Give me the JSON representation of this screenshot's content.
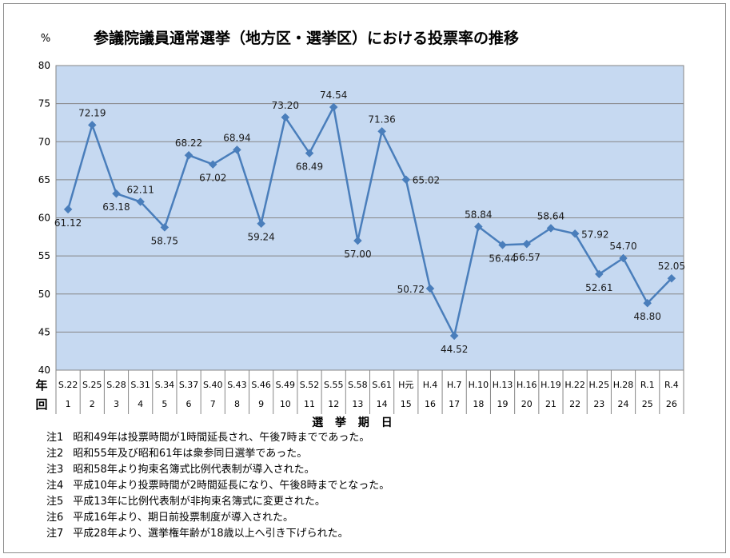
{
  "chart_data": {
    "type": "line",
    "title": "参議院議員通常選挙（地方区・選挙区）における投票率の推移",
    "ylabel": "%",
    "xlabel": "選 挙 期 日",
    "ylim": [
      40,
      80
    ],
    "yticks": [
      40,
      45,
      50,
      55,
      60,
      65,
      70,
      75,
      80
    ],
    "grid": true,
    "row_labels": {
      "year": "年",
      "count": "回"
    },
    "categories": [
      "S.22",
      "S.25",
      "S.28",
      "S.31",
      "S.34",
      "S.37",
      "S.40",
      "S.43",
      "S.46",
      "S.49",
      "S.52",
      "S.55",
      "S.58",
      "S.61",
      "H元",
      "H.4",
      "H.7",
      "H.10",
      "H.13",
      "H.16",
      "H.19",
      "H.22",
      "H.25",
      "H.28",
      "R.1",
      "R.4"
    ],
    "election_numbers": [
      1,
      2,
      3,
      4,
      5,
      6,
      7,
      8,
      9,
      10,
      11,
      12,
      13,
      14,
      15,
      16,
      17,
      18,
      19,
      20,
      21,
      22,
      23,
      24,
      25,
      26
    ],
    "series": [
      {
        "values": [
          61.12,
          72.19,
          63.18,
          62.11,
          58.75,
          68.22,
          67.02,
          68.94,
          59.24,
          73.2,
          68.49,
          74.54,
          57.0,
          71.36,
          65.02,
          50.72,
          44.52,
          58.84,
          56.44,
          56.57,
          58.64,
          57.92,
          52.61,
          54.7,
          48.8,
          52.05
        ]
      }
    ],
    "colors": {
      "line": "#4a7ebb",
      "marker": "#4a7ebb",
      "plot_bg": "#c6d9f1",
      "grid": "#868686"
    }
  },
  "notes": [
    {
      "id": "注1",
      "text": "昭和49年は投票時間が1時間延長され、午後7時までであった。"
    },
    {
      "id": "注2",
      "text": "昭和55年及び昭和61年は衆参同日選挙であった。"
    },
    {
      "id": "注3",
      "text": "昭和58年より拘束名簿式比例代表制が導入された。"
    },
    {
      "id": "注4",
      "text": "平成10年より投票時間が2時間延長になり、午後8時までとなった。"
    },
    {
      "id": "注5",
      "text": "平成13年に比例代表制が非拘束名簿式に変更された。"
    },
    {
      "id": "注6",
      "text": "平成16年より、期日前投票制度が導入された。"
    },
    {
      "id": "注7",
      "text": "平成28年より、選挙権年齢が18歳以上へ引き下げられた。"
    }
  ]
}
